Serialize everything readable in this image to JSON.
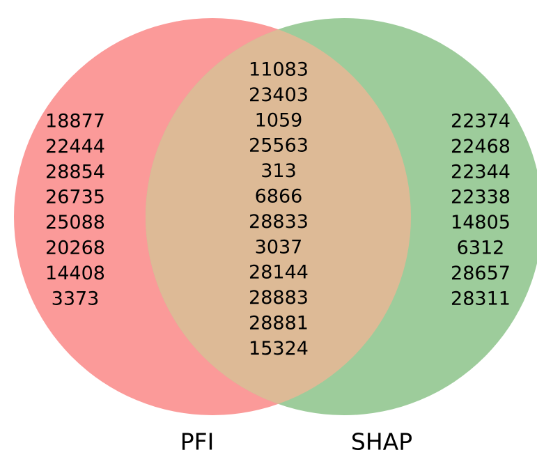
{
  "sets": [
    {
      "label": "PFI",
      "items": [
        "18877",
        "22444",
        "28854",
        "26735",
        "25088",
        "20268",
        "14408",
        "3373"
      ]
    },
    {
      "label": "SHAP",
      "items": [
        "22374",
        "22468",
        "22344",
        "22338",
        "14805",
        "6312",
        "28657",
        "28311"
      ]
    }
  ],
  "intersection": {
    "items": [
      "11083",
      "23403",
      "1059",
      "25563",
      "313",
      "6866",
      "28833",
      "3037",
      "28144",
      "28883",
      "28881",
      "15324"
    ]
  }
}
